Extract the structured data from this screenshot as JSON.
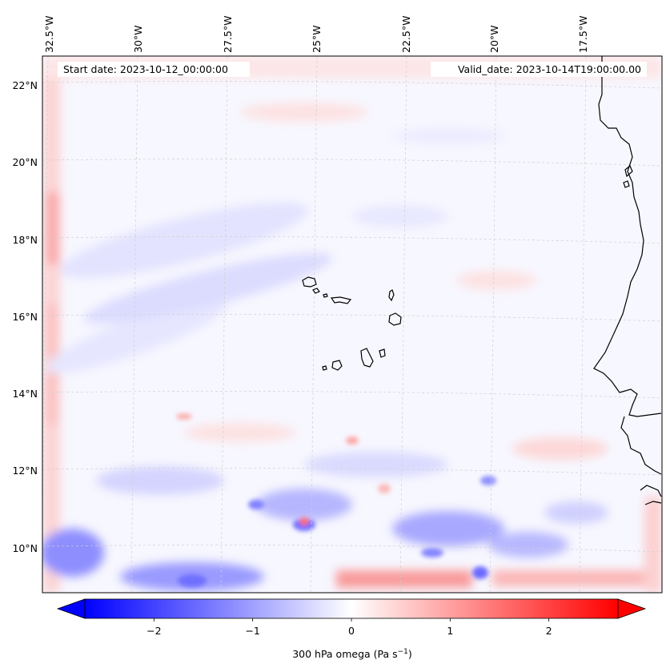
{
  "map": {
    "start_date_label": "Start date: 2023-10-12_00:00:00",
    "valid_date_label": "Valid_date: 2023-10-14T19:00:00.00",
    "lon_ticks": [
      "32.5°W",
      "30°W",
      "27.5°W",
      "25°W",
      "22.5°W",
      "20°W",
      "17.5°W"
    ],
    "lat_ticks": [
      "22°N",
      "20°N",
      "18°N",
      "16°N",
      "14°N",
      "12°N",
      "10°N"
    ],
    "gridlines": true
  },
  "colorbar": {
    "label_main": "300 hPa omega (Pa s",
    "label_exp": "−1",
    "label_close": ")",
    "ticks": [
      "−2",
      "−1",
      "0",
      "1",
      "2"
    ],
    "min": -2.7,
    "max": 2.7,
    "low_color": "#0000ff",
    "mid_color": "#ffffff",
    "high_color": "#ff0000"
  },
  "chart_data": {
    "type": "heatmap",
    "variable": "300 hPa omega (Pa s−1)",
    "lon_range": [
      "32.5°W",
      "15.5°W"
    ],
    "lat_range": [
      "9°N",
      "22.7°N"
    ],
    "color_range": [
      -2.7,
      2.7
    ]
  }
}
